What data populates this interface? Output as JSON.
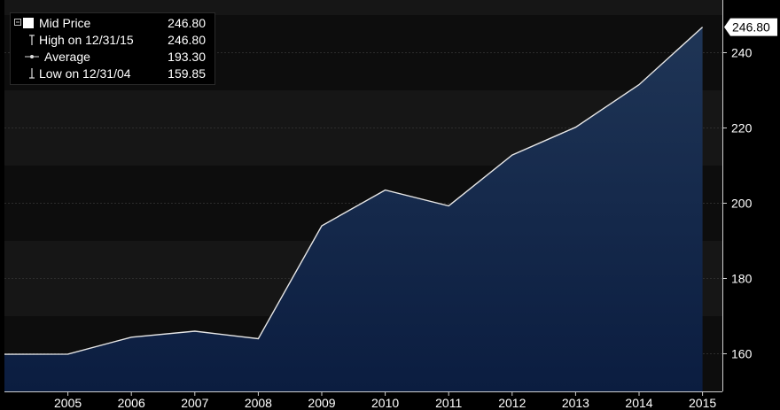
{
  "chart_data": {
    "type": "area",
    "title": "",
    "xlabel": "",
    "ylabel": "",
    "x_tick_labels": [
      "2005",
      "2006",
      "2007",
      "2008",
      "2009",
      "2010",
      "2011",
      "2012",
      "2013",
      "2014",
      "2015"
    ],
    "y_tick_labels": [
      "160",
      "180",
      "200",
      "220",
      "240"
    ],
    "ylim": [
      150,
      254
    ],
    "grid": true,
    "series": [
      {
        "name": "Mid Price",
        "x": [
          "2004",
          "2005",
          "2006",
          "2007",
          "2008",
          "2009",
          "2010",
          "2011",
          "2012",
          "2013",
          "2014",
          "2015"
        ],
        "values": [
          159.85,
          159.9,
          164.4,
          166.0,
          164.0,
          194.0,
          203.5,
          199.3,
          212.8,
          220.2,
          231.5,
          246.8
        ]
      }
    ],
    "last_value_label": "246.80",
    "colors": {
      "background": "#000000",
      "band_dark": "#0d0d0d",
      "band_light": "#161616",
      "area_top": "#1f3556",
      "area_bottom": "#0b1d40",
      "line": "#e6e6e6",
      "axis_text": "#ffffff",
      "value_tag_bg": "#ffffff",
      "value_tag_text": "#000000"
    }
  },
  "legend": {
    "items": [
      {
        "label": "Mid Price",
        "value": "246.80",
        "icon": "filled-square-icon"
      },
      {
        "label": "High on 12/31/15",
        "value": "246.80",
        "icon": "high-marker-icon"
      },
      {
        "label": "Average",
        "value": "193.30",
        "icon": "average-marker-icon"
      },
      {
        "label": "Low on 12/31/04",
        "value": "159.85",
        "icon": "low-marker-icon"
      }
    ]
  }
}
